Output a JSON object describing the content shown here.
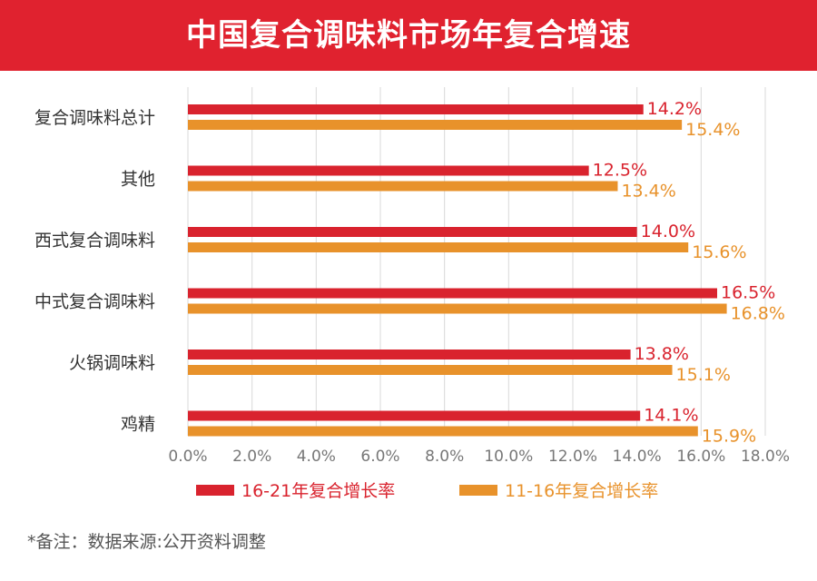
{
  "title": "中国复合调味料市场年复合增速",
  "note": "*备注：数据来源:公开资料调整",
  "chart_data": {
    "type": "bar",
    "orientation": "horizontal",
    "title": "中国复合调味料市场年复合增速",
    "categories": [
      "复合调味料总计",
      "其他",
      "西式复合调味料",
      "中式复合调味料",
      "火锅调味料",
      "鸡精"
    ],
    "series": [
      {
        "name": "16-21年复合增长率",
        "color": "#d9232e",
        "values": [
          14.2,
          12.5,
          14.0,
          16.5,
          13.8,
          14.1
        ],
        "labels": [
          "14.2%",
          "12.5%",
          "14.0%",
          "16.5%",
          "13.8%",
          "14.1%"
        ]
      },
      {
        "name": "11-16年复合增长率",
        "color": "#e8922b",
        "values": [
          15.4,
          13.4,
          15.6,
          16.8,
          15.1,
          15.9
        ],
        "labels": [
          "15.4%",
          "13.4%",
          "15.6%",
          "16.8%",
          "15.1%",
          "15.9%"
        ]
      }
    ],
    "ticks": [
      "0.0%",
      "2.0%",
      "4.0%",
      "6.0%",
      "8.0%",
      "10.0%",
      "12.0%",
      "14.0%",
      "16.0%",
      "18.0%"
    ],
    "xlim": [
      0,
      18
    ],
    "grid": true,
    "legend": "bottom"
  }
}
